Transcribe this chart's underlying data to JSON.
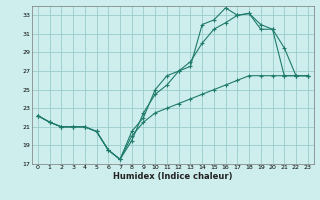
{
  "xlabel": "Humidex (Indice chaleur)",
  "bg_color": "#ceeeed",
  "grid_color": "#99cccc",
  "line_color": "#1e7a6a",
  "xlim": [
    -0.5,
    23.5
  ],
  "ylim": [
    17,
    34
  ],
  "yticks": [
    17,
    19,
    21,
    23,
    25,
    27,
    29,
    31,
    33
  ],
  "xticks": [
    0,
    1,
    2,
    3,
    4,
    5,
    6,
    7,
    8,
    9,
    10,
    11,
    12,
    13,
    14,
    15,
    16,
    17,
    18,
    19,
    20,
    21,
    22,
    23
  ],
  "series1_x": [
    0,
    1,
    2,
    3,
    4,
    5,
    6,
    7,
    8,
    9,
    10,
    11,
    12,
    13,
    14,
    15,
    16,
    17,
    18,
    19,
    20,
    21,
    22,
    23
  ],
  "series1_y": [
    22.2,
    21.5,
    21.0,
    21.0,
    21.0,
    20.5,
    18.5,
    17.5,
    19.5,
    22.5,
    24.5,
    25.5,
    27.0,
    27.5,
    32.0,
    32.5,
    33.8,
    33.0,
    33.2,
    32.0,
    31.5,
    29.5,
    26.5,
    26.5
  ],
  "series2_x": [
    0,
    1,
    2,
    3,
    4,
    5,
    6,
    7,
    8,
    9,
    10,
    11,
    12,
    13,
    14,
    15,
    16,
    17,
    18,
    19,
    20,
    21,
    22,
    23
  ],
  "series2_y": [
    22.2,
    21.5,
    21.0,
    21.0,
    21.0,
    20.5,
    18.5,
    17.5,
    20.5,
    22.0,
    25.0,
    26.5,
    27.0,
    28.0,
    30.0,
    31.5,
    32.2,
    33.0,
    33.2,
    31.5,
    31.5,
    26.5,
    26.5,
    26.5
  ],
  "series3_x": [
    0,
    1,
    2,
    3,
    4,
    5,
    6,
    7,
    8,
    9,
    10,
    11,
    12,
    13,
    14,
    15,
    16,
    17,
    18,
    19,
    20,
    21,
    22,
    23
  ],
  "series3_y": [
    22.2,
    21.5,
    21.0,
    21.0,
    21.0,
    20.5,
    18.5,
    17.5,
    20.0,
    21.5,
    22.5,
    23.0,
    23.5,
    24.0,
    24.5,
    25.0,
    25.5,
    26.0,
    26.5,
    26.5,
    26.5,
    26.5,
    26.5,
    26.5
  ]
}
